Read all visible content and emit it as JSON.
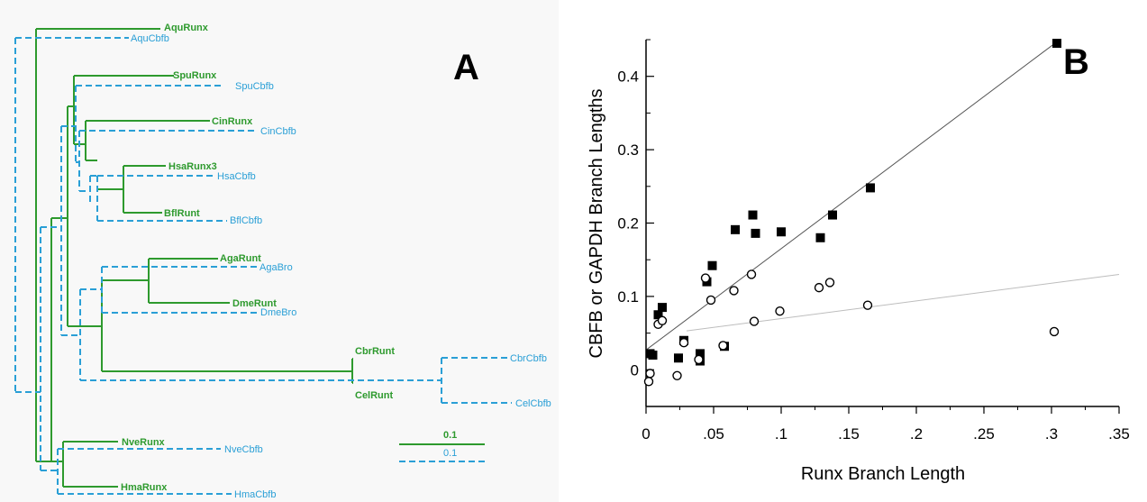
{
  "colors": {
    "runx": "#2e9a2e",
    "cbfb": "#2a9fd6",
    "axis": "#000000",
    "panel_bg": "#f8f8f8"
  },
  "panelA": {
    "label": "A",
    "runx_taxa": [
      "AquRunx",
      "SpuRunx",
      "CinRunx",
      "HsaRunx3",
      "BflRunt",
      "AgaRunt",
      "DmeRunt",
      "CbrRunt",
      "CelRunt",
      "NveRunx",
      "HmaRunx"
    ],
    "cbfb_taxa": [
      "AquCbfb",
      "SpuCbfb",
      "CinCbfb",
      "HsaCbfb",
      "BflCbfb",
      "AgaBro",
      "DmeBro",
      "CbrCbfb",
      "CelCbfb",
      "NveCbfb",
      "HmaCbfb"
    ],
    "scale_runx": "0.1",
    "scale_cbfb": "0.1"
  },
  "panelB": {
    "label": "B"
  },
  "chart_data": {
    "type": "scatter",
    "title": "",
    "xlabel": "Runx Branch Length",
    "ylabel": "CBFB or GAPDH Branch Lengths",
    "xlim": [
      0,
      0.35
    ],
    "ylim": [
      -0.05,
      0.45
    ],
    "x_ticks": [
      0,
      0.05,
      0.1,
      0.15,
      0.2,
      0.25,
      0.3,
      0.35
    ],
    "x_tick_labels": [
      "0",
      ".05",
      ".1",
      ".15",
      ".2",
      ".25",
      ".3",
      ".35"
    ],
    "y_ticks": [
      0,
      0.1,
      0.2,
      0.3,
      0.4
    ],
    "y_tick_labels": [
      "0",
      "0.1",
      "0.2",
      "0.3",
      "0.4"
    ],
    "grid": false,
    "series": [
      {
        "marker": "filled-square",
        "points": [
          [
            0.003,
            0.022
          ],
          [
            0.005,
            0.02
          ],
          [
            0.009,
            0.075
          ],
          [
            0.012,
            0.085
          ],
          [
            0.024,
            0.016
          ],
          [
            0.028,
            0.04
          ],
          [
            0.04,
            0.012
          ],
          [
            0.04,
            0.022
          ],
          [
            0.045,
            0.12
          ],
          [
            0.049,
            0.142
          ],
          [
            0.058,
            0.032
          ],
          [
            0.066,
            0.191
          ],
          [
            0.079,
            0.211
          ],
          [
            0.081,
            0.186
          ],
          [
            0.1,
            0.188
          ],
          [
            0.129,
            0.18
          ],
          [
            0.138,
            0.211
          ],
          [
            0.166,
            0.248
          ],
          [
            0.304,
            0.445
          ]
        ],
        "fit": [
          [
            0,
            0.027
          ],
          [
            0.304,
            0.447
          ]
        ]
      },
      {
        "marker": "open-circle",
        "points": [
          [
            0.002,
            -0.016
          ],
          [
            0.003,
            -0.005
          ],
          [
            0.009,
            0.062
          ],
          [
            0.012,
            0.067
          ],
          [
            0.023,
            -0.008
          ],
          [
            0.028,
            0.037
          ],
          [
            0.039,
            0.014
          ],
          [
            0.044,
            0.125
          ],
          [
            0.048,
            0.095
          ],
          [
            0.057,
            0.033
          ],
          [
            0.065,
            0.108
          ],
          [
            0.078,
            0.13
          ],
          [
            0.08,
            0.066
          ],
          [
            0.099,
            0.08
          ],
          [
            0.128,
            0.112
          ],
          [
            0.136,
            0.119
          ],
          [
            0.164,
            0.088
          ],
          [
            0.302,
            0.052
          ]
        ],
        "fit": [
          [
            0.03,
            0.053
          ],
          [
            0.35,
            0.13
          ]
        ]
      }
    ]
  }
}
